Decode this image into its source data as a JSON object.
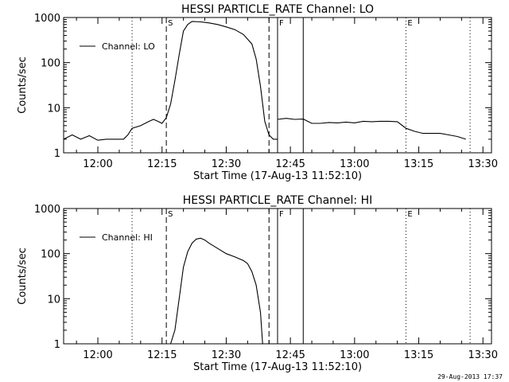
{
  "footer_timestamp": "29-Aug-2013 17:37",
  "chart_data": [
    {
      "type": "line",
      "title": "HESSI PARTICLE_RATE Channel: LO",
      "xlabel": "Start Time (17-Aug-13 11:52:10)",
      "ylabel": "Counts/sec",
      "yscale": "log",
      "ylim": [
        1,
        1000
      ],
      "xlim": [
        "11:52",
        "13:32"
      ],
      "x_ticks": [
        "12:00",
        "12:15",
        "12:30",
        "12:45",
        "13:00",
        "13:15",
        "13:30"
      ],
      "y_ticks": [
        "1",
        "10",
        "100",
        "1000"
      ],
      "legend": {
        "position": "top-left",
        "label": "Channel: LO"
      },
      "markers": [
        {
          "label": "",
          "time": "12:08",
          "style": "dotted"
        },
        {
          "label": "S",
          "time": "12:16",
          "style": "dashed"
        },
        {
          "label": "",
          "time": "12:40",
          "style": "dashed"
        },
        {
          "label": "F",
          "time": "12:42",
          "style": "solid"
        },
        {
          "label": "",
          "time": "12:48",
          "style": "solid"
        },
        {
          "label": "E",
          "time": "13:12",
          "style": "dotted"
        },
        {
          "label": "",
          "time": "13:27",
          "style": "dotted"
        }
      ],
      "series": [
        {
          "name": "Channel: LO",
          "segments": [
            [
              [
                "11:52",
                2
              ],
              [
                "11:54",
                2.5
              ],
              [
                "11:56",
                2
              ],
              [
                "11:58",
                2.4
              ],
              [
                "12:00",
                1.9
              ],
              [
                "12:02",
                2
              ],
              [
                "12:04",
                2
              ],
              [
                "12:06",
                2
              ],
              [
                "12:07",
                2.5
              ],
              [
                "12:08",
                3.5
              ],
              [
                "12:10",
                4
              ],
              [
                "12:12",
                5
              ],
              [
                "12:13",
                5.5
              ],
              [
                "12:14",
                5
              ],
              [
                "12:15",
                4.5
              ],
              [
                "12:16",
                6
              ],
              [
                "12:17",
                12
              ],
              [
                "12:18",
                40
              ],
              [
                "12:19",
                150
              ],
              [
                "12:20",
                500
              ],
              [
                "12:21",
                700
              ],
              [
                "12:22",
                820
              ],
              [
                "12:24",
                800
              ],
              [
                "12:26",
                760
              ],
              [
                "12:28",
                700
              ],
              [
                "12:30",
                620
              ],
              [
                "12:32",
                540
              ],
              [
                "12:34",
                420
              ],
              [
                "12:36",
                260
              ],
              [
                "12:37",
                120
              ],
              [
                "12:38",
                30
              ],
              [
                "12:39",
                5
              ],
              [
                "12:40",
                2.5
              ],
              [
                "12:41",
                2
              ],
              [
                "12:42",
                2
              ]
            ],
            [
              [
                "12:42",
                5.5
              ],
              [
                "12:44",
                5.8
              ],
              [
                "12:46",
                5.5
              ],
              [
                "12:48",
                5.6
              ],
              [
                "12:50",
                4.5
              ],
              [
                "12:52",
                4.5
              ],
              [
                "12:54",
                4.7
              ],
              [
                "12:56",
                4.6
              ],
              [
                "12:58",
                4.8
              ],
              [
                "13:00",
                4.6
              ],
              [
                "13:02",
                5
              ],
              [
                "13:04",
                4.9
              ],
              [
                "13:06",
                5
              ],
              [
                "13:08",
                5
              ],
              [
                "13:10",
                4.9
              ],
              [
                "13:12",
                3.5
              ],
              [
                "13:14",
                3
              ],
              [
                "13:16",
                2.7
              ],
              [
                "13:18",
                2.7
              ],
              [
                "13:20",
                2.7
              ],
              [
                "13:22",
                2.5
              ],
              [
                "13:24",
                2.3
              ],
              [
                "13:26",
                2
              ]
            ]
          ]
        }
      ]
    },
    {
      "type": "line",
      "title": "HESSI PARTICLE_RATE Channel: HI",
      "xlabel": "Start Time (17-Aug-13 11:52:10)",
      "ylabel": "Counts/sec",
      "yscale": "log",
      "ylim": [
        1,
        1000
      ],
      "xlim": [
        "11:52",
        "13:32"
      ],
      "x_ticks": [
        "12:00",
        "12:15",
        "12:30",
        "12:45",
        "13:00",
        "13:15",
        "13:30"
      ],
      "y_ticks": [
        "1",
        "10",
        "100",
        "1000"
      ],
      "legend": {
        "position": "top-left",
        "label": "Channel: HI"
      },
      "markers": [
        {
          "label": "",
          "time": "12:08",
          "style": "dotted"
        },
        {
          "label": "S",
          "time": "12:16",
          "style": "dashed"
        },
        {
          "label": "",
          "time": "12:40",
          "style": "dashed"
        },
        {
          "label": "F",
          "time": "12:42",
          "style": "solid"
        },
        {
          "label": "",
          "time": "12:48",
          "style": "solid"
        },
        {
          "label": "E",
          "time": "13:12",
          "style": "dotted"
        },
        {
          "label": "",
          "time": "13:27",
          "style": "dotted"
        }
      ],
      "series": [
        {
          "name": "Channel: HI",
          "segments": [
            [
              [
                "12:17",
                1
              ],
              [
                "12:18",
                2
              ],
              [
                "12:19",
                10
              ],
              [
                "12:20",
                50
              ],
              [
                "12:21",
                110
              ],
              [
                "12:22",
                170
              ],
              [
                "12:23",
                210
              ],
              [
                "12:24",
                220
              ],
              [
                "12:25",
                200
              ],
              [
                "12:26",
                170
              ],
              [
                "12:28",
                130
              ],
              [
                "12:30",
                100
              ],
              [
                "12:32",
                85
              ],
              [
                "12:34",
                70
              ],
              [
                "12:35",
                60
              ],
              [
                "12:36",
                40
              ],
              [
                "12:37",
                20
              ],
              [
                "12:38",
                5
              ],
              [
                "12:38.5",
                1
              ]
            ]
          ]
        }
      ]
    }
  ]
}
